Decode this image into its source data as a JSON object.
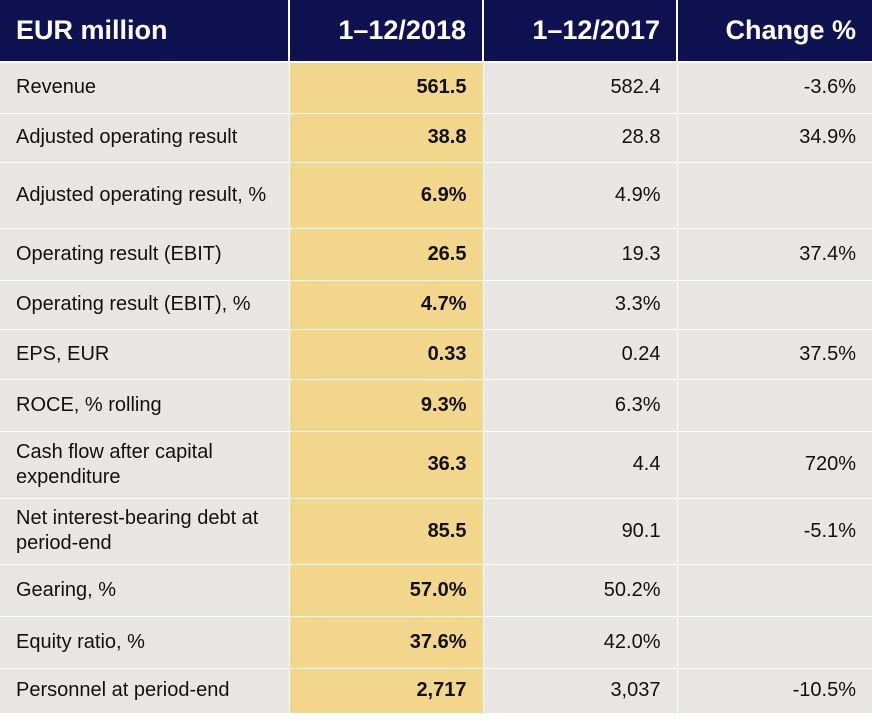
{
  "table": {
    "headers": [
      "EUR million",
      "1–12/2018",
      "1–12/2017",
      "Change %"
    ],
    "rows": [
      {
        "label": "Revenue",
        "y2018": "561.5",
        "y2017": "582.4",
        "change": "-3.6%"
      },
      {
        "label": "Adjusted operating result",
        "y2018": "38.8",
        "y2017": "28.8",
        "change": "34.9%"
      },
      {
        "label": "Adjusted operating result, %",
        "y2018": "6.9%",
        "y2017": "4.9%",
        "change": ""
      },
      {
        "label": "Operating result (EBIT)",
        "y2018": "26.5",
        "y2017": "19.3",
        "change": "37.4%"
      },
      {
        "label": "Operating result (EBIT), %",
        "y2018": "4.7%",
        "y2017": "3.3%",
        "change": ""
      },
      {
        "label": "EPS, EUR",
        "y2018": "0.33",
        "y2017": "0.24",
        "change": "37.5%"
      },
      {
        "label": "ROCE, % rolling",
        "y2018": "9.3%",
        "y2017": "6.3%",
        "change": ""
      },
      {
        "label": "Cash flow after capital expenditure",
        "y2018": "36.3",
        "y2017": "4.4",
        "change": "720%"
      },
      {
        "label": "Net interest-bearing debt at period-end",
        "y2018": "85.5",
        "y2017": "90.1",
        "change": "-5.1%"
      },
      {
        "label": "Gearing, %",
        "y2018": "57.0%",
        "y2017": "50.2%",
        "change": ""
      },
      {
        "label": "Equity ratio, %",
        "y2018": "37.6%",
        "y2017": "42.0%",
        "change": ""
      },
      {
        "label": "Personnel at period-end",
        "y2018": "2,717",
        "y2017": "3,037",
        "change": "-10.5%"
      }
    ]
  },
  "colors": {
    "header_bg": "#0f1150",
    "highlight_column": "#f2d68b",
    "row_bg": "#e8e6e2"
  }
}
